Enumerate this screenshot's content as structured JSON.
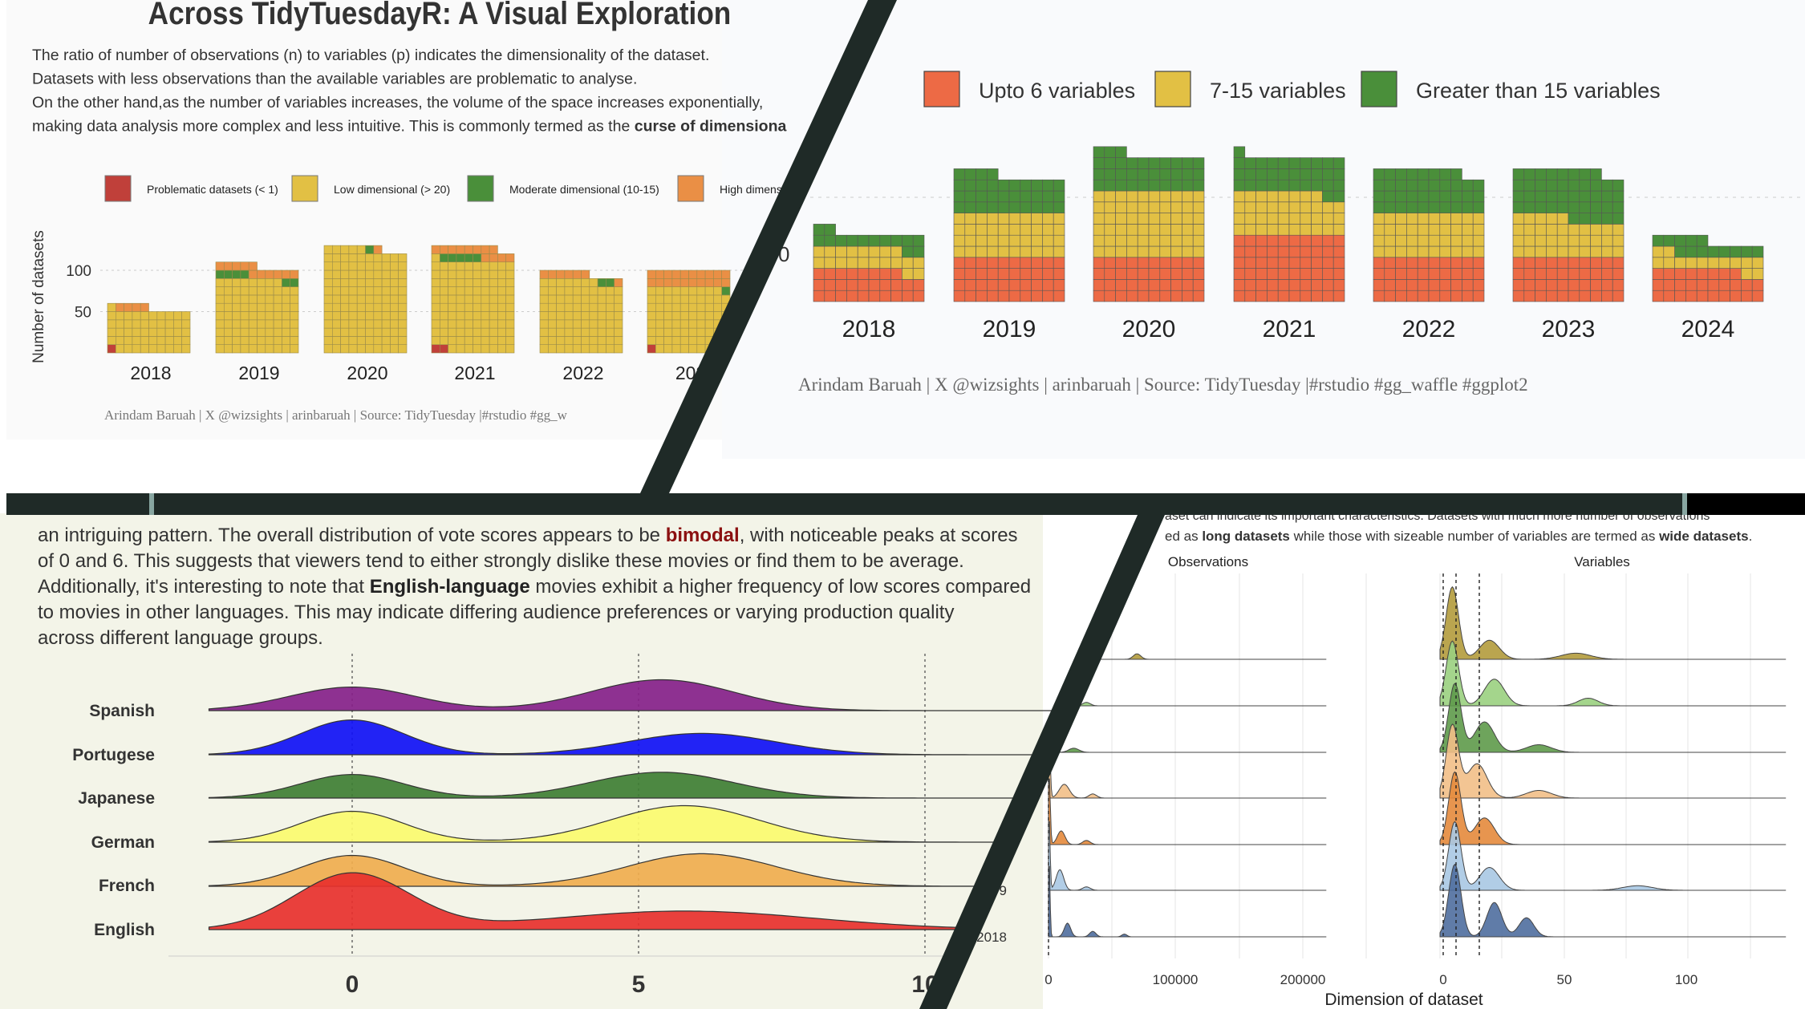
{
  "panel1": {
    "title": "Across TidyTuesdayR: A Visual Exploration",
    "paragraph_lines": [
      "The ratio of number of observations (n) to variables (p) indicates the dimensionality of the dataset.",
      "Datasets with less observations than the available variables are problematic to analyse.",
      "On the other hand,as the number of variables increases, the volume of the space increases exponentially,"
    ],
    "last_line_prefix": "making data analysis more complex and less intuitive. This is commonly termed as the ",
    "last_line_bold": "curse of dimensiona",
    "caption": "Arindam Baruah | X @wizsights | arinbaruah | Source: TidyTuesday |#rstudio #gg_w",
    "colors": {
      "problematic": "#c0403a",
      "low": "#e2c044",
      "moderate": "#4a8f3a",
      "high": "#ea8f45"
    },
    "chart_data": {
      "type": "waffle",
      "legend": [
        "Problematic datasets (< 1)",
        "Low dimensional (> 20)",
        "Moderate dimensional (10-15)",
        "High dimens"
      ],
      "ylabel": "Number of datasets",
      "yticks": [
        50,
        100
      ],
      "categories": [
        "2018",
        "2019",
        "2020",
        "2021",
        "2022",
        "202"
      ],
      "series": [
        {
          "name": "Problematic datasets (< 1)",
          "values": [
            1,
            0,
            0,
            2,
            0,
            1
          ]
        },
        {
          "name": "Low dimensional (> 20)",
          "values": [
            50,
            88,
            125,
            109,
            87,
            78
          ]
        },
        {
          "name": "Moderate dimensional (10-15)",
          "values": [
            0,
            6,
            1,
            5,
            2,
            1
          ]
        },
        {
          "name": "High dimens",
          "values": [
            4,
            11,
            1,
            12,
            7,
            20
          ]
        }
      ]
    }
  },
  "panel2": {
    "colors": {
      "upto6": "#ed6a45",
      "mid": "#e2c044",
      "gt15": "#4a8f3a"
    },
    "caption": "Arindam Baruah | X @wizsights | arinbaruah | Source: TidyTuesday |#rstudio #gg_waffle #ggplot2",
    "chart_data": {
      "type": "waffle",
      "legend": [
        "Upto 6 variables",
        "7-15 variables",
        "Greater than 15 variables"
      ],
      "categories": [
        "2018",
        "2019",
        "2020",
        "2021",
        "2022",
        "2023",
        "2024"
      ],
      "series": [
        {
          "name": "Upto 6 variables",
          "values": [
            28,
            40,
            40,
            60,
            40,
            40,
            28
          ]
        },
        {
          "name": "7-15 variables",
          "values": [
            20,
            40,
            60,
            38,
            40,
            35,
            14
          ]
        },
        {
          "name": "Greater than 15 variables",
          "values": [
            14,
            34,
            33,
            33,
            38,
            43,
            13
          ]
        }
      ],
      "partial_tick": "0"
    }
  },
  "panel3": {
    "text_parts": [
      {
        "t": "an intriguing pattern. The overall distribution of vote scores appears to be ",
        "s": "n"
      },
      {
        "t": "bimodal",
        "s": "r"
      },
      {
        "t": ", with noticeable peaks at scores",
        "s": "n"
      },
      {
        "t": "\nof 0 and 6. This suggests that viewers tend to either strongly dislike these movies or find them to be average.",
        "s": "n"
      },
      {
        "t": "\nAdditionally, it's interesting to note that ",
        "s": "n"
      },
      {
        "t": "English-language",
        "s": "b"
      },
      {
        "t": "  movies exhibit a higher frequency of low scores compared",
        "s": "n"
      },
      {
        "t": "\nto movies in other languages. This may indicate differing audience preferences or varying production quality",
        "s": "n"
      },
      {
        "t": "\nacross different language groups.",
        "s": "n"
      }
    ],
    "chart_data": {
      "type": "ridgeline",
      "xticks": [
        "0",
        "5",
        "10"
      ],
      "categories": [
        "English",
        "French",
        "German",
        "Japanese",
        "Portugese",
        "Spanish"
      ],
      "colors": [
        "#e8302c",
        "#f0ac4e",
        "#fbfa6e",
        "#3f7e33",
        "#1010f5",
        "#852089"
      ],
      "peaks": [
        [
          [
            0,
            1.0,
            1.0
          ],
          [
            5.8,
            0.33,
            2.3
          ]
        ],
        [
          [
            0,
            0.55,
            0.9
          ],
          [
            6.1,
            0.58,
            1.3
          ]
        ],
        [
          [
            0,
            0.55,
            0.9
          ],
          [
            5.8,
            0.65,
            1.3
          ]
        ],
        [
          [
            0,
            0.42,
            0.9
          ],
          [
            5.4,
            0.46,
            1.25
          ]
        ],
        [
          [
            0,
            0.62,
            0.9
          ],
          [
            6.1,
            0.38,
            1.3
          ]
        ],
        [
          [
            0,
            0.42,
            1.1
          ],
          [
            5.4,
            0.55,
            1.25
          ]
        ]
      ]
    }
  },
  "panel4": {
    "top_line": "aset can indicate its important characteristics. Datasets with much more number of observations",
    "intro_prefix": "ed as ",
    "intro_b1": "long datasets",
    "intro_mid": " while those with sizeable number of variables are termed as ",
    "intro_b2": "wide datasets",
    "intro_end": ".",
    "facet_labels": [
      "Observations",
      "Variables"
    ],
    "xlabel": "Dimension of dataset",
    "obs_ticks": [
      "0",
      "100000",
      "200000"
    ],
    "var_ticks": [
      "0",
      "50",
      "100"
    ],
    "year_labels": [
      "2018",
      "9"
    ],
    "chart_data": {
      "type": "ridgeline",
      "facets": [
        "Observations",
        "Variables"
      ],
      "colors": [
        "#b29b3c",
        "#9ad07f",
        "#5e9a4a",
        "#f2bf87",
        "#e48a3c",
        "#a9c8e3",
        "#4f6e9f"
      ],
      "var_peaks": [
        [
          [
            5,
            0.95,
            2.5
          ],
          [
            20,
            0.25,
            4
          ],
          [
            55,
            0.08,
            6
          ]
        ],
        [
          [
            5,
            0.85,
            2.5
          ],
          [
            22,
            0.35,
            4
          ],
          [
            60,
            0.1,
            4
          ]
        ],
        [
          [
            6,
            0.9,
            2.5
          ],
          [
            18,
            0.4,
            4
          ],
          [
            40,
            0.1,
            5
          ]
        ],
        [
          [
            5,
            0.95,
            2.5
          ],
          [
            15,
            0.45,
            4
          ],
          [
            40,
            0.1,
            5
          ]
        ],
        [
          [
            6,
            0.95,
            2.5
          ],
          [
            18,
            0.35,
            4
          ]
        ],
        [
          [
            6,
            0.9,
            2.5
          ],
          [
            20,
            0.3,
            4
          ],
          [
            80,
            0.06,
            6
          ]
        ],
        [
          [
            6,
            0.95,
            2.5
          ],
          [
            22,
            0.45,
            3
          ],
          [
            35,
            0.25,
            3
          ]
        ]
      ]
    }
  }
}
